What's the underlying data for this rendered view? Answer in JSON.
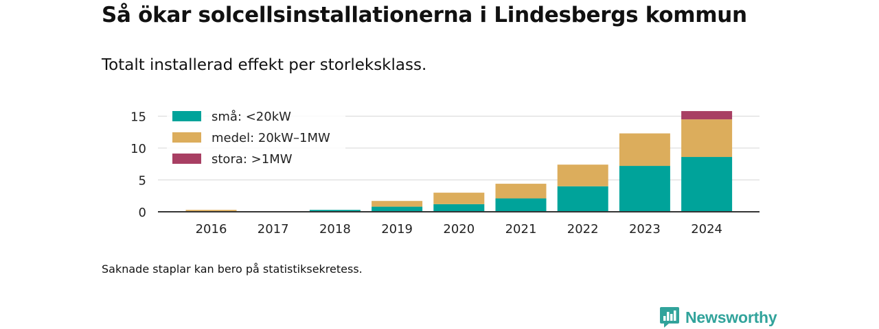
{
  "title": "Så ökar solcellsinstallationerna i Lindesbergs kommun",
  "subtitle": "Totalt installerad effekt per storleksklass.",
  "footnote": "Saknade staplar kan bero på statistiksekretess.",
  "brand": {
    "name": "Newsworthy",
    "icon": "newsworthy-logo-icon"
  },
  "chart_data": {
    "type": "bar",
    "stacked": true,
    "categories": [
      "2016",
      "2017",
      "2018",
      "2019",
      "2020",
      "2021",
      "2022",
      "2023",
      "2024"
    ],
    "series": [
      {
        "name": "små: <20kW",
        "color": "#00a39a",
        "values": [
          0.05,
          0,
          0.3,
          0.8,
          1.2,
          2.1,
          4.0,
          7.2,
          8.6
        ]
      },
      {
        "name": "medel: 20kW–1MW",
        "color": "#dcad5c",
        "values": [
          0.25,
          0,
          0,
          0.9,
          1.8,
          2.3,
          3.4,
          5.1,
          5.9
        ]
      },
      {
        "name": "stora: >1MW",
        "color": "#a83f63",
        "values": [
          0,
          0,
          0,
          0,
          0,
          0,
          0,
          0,
          1.3
        ]
      }
    ],
    "yticks": [
      0,
      5,
      10,
      15
    ],
    "ylim": [
      0,
      16.5
    ],
    "grid": true,
    "legend": "top-left"
  }
}
